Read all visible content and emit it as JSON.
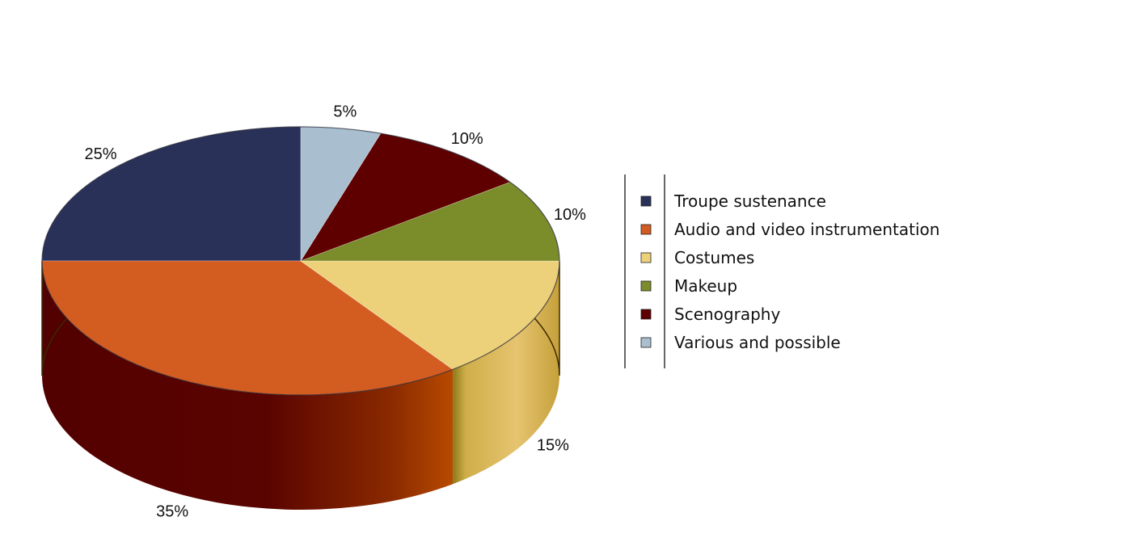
{
  "chart_data": {
    "type": "pie",
    "style": "3d",
    "title": "",
    "legend_position": "right",
    "slices": [
      {
        "label": "Troupe sustenance",
        "value": 25,
        "value_label": "25%",
        "color": "#2a3158"
      },
      {
        "label": "Audio and video instrumentation",
        "value": 35,
        "value_label": "35%",
        "color": "#d35c21"
      },
      {
        "label": "Costumes",
        "value": 15,
        "value_label": "15%",
        "color": "#edd07a"
      },
      {
        "label": "Makeup",
        "value": 10,
        "value_label": "10%",
        "color": "#7b8c2a"
      },
      {
        "label": "Scenography",
        "value": 10,
        "value_label": "10%",
        "color": "#5e0000"
      },
      {
        "label": "Various and possible",
        "value": 5,
        "value_label": "5%",
        "color": "#a9bfd0"
      }
    ]
  }
}
